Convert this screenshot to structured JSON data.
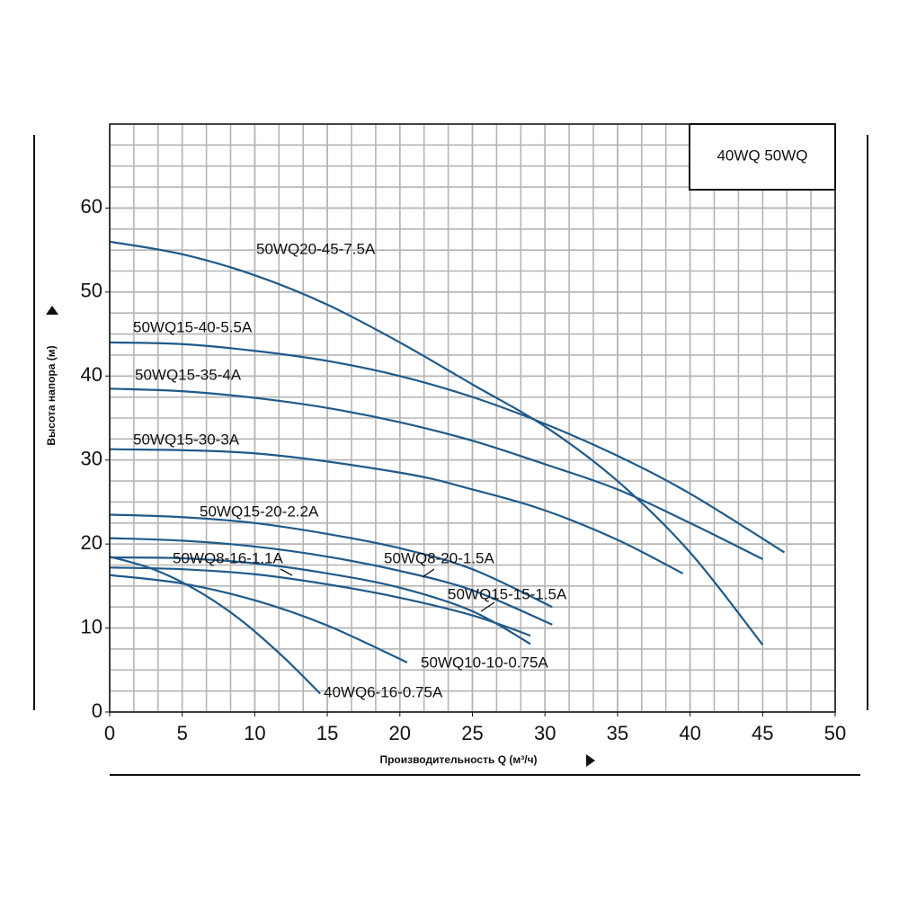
{
  "chart_data": {
    "type": "line",
    "box_label": "40WQ 50WQ",
    "xlabel": "Производительность Q (м³/ч)",
    "ylabel": "Высота напора (м)",
    "xlim": [
      0,
      50
    ],
    "ylim": [
      0,
      70
    ],
    "xticks": [
      0,
      5,
      10,
      15,
      20,
      25,
      30,
      35,
      40,
      45,
      50
    ],
    "yticks": [
      0,
      10,
      20,
      30,
      40,
      50,
      60
    ],
    "grid": true,
    "x_grid_divisions": 3,
    "y_grid_divisions": 4,
    "series": [
      {
        "name": "50WQ20-45-7.5A",
        "color": "#1f5a8a",
        "x": [
          0,
          5,
          10,
          15,
          20,
          25,
          30,
          35,
          40,
          45
        ],
        "values": [
          56,
          54.5,
          52,
          48.5,
          44,
          39,
          34,
          27.5,
          19,
          8
        ]
      },
      {
        "name": "50WQ15-40-5.5A",
        "color": "#1f5a8a",
        "x": [
          0,
          5,
          10,
          15,
          20,
          25,
          30,
          35,
          40,
          46.5
        ],
        "values": [
          44,
          43.8,
          43,
          41.8,
          40,
          37.5,
          34.3,
          30.5,
          26,
          19
        ]
      },
      {
        "name": "50WQ15-35-4A",
        "color": "#1f5a8a",
        "x": [
          0,
          5,
          10,
          15,
          20,
          25,
          30,
          35,
          40,
          45
        ],
        "values": [
          38.5,
          38.2,
          37.4,
          36.2,
          34.5,
          32.3,
          29.5,
          26.5,
          22.5,
          18.2
        ]
      },
      {
        "name": "50WQ15-30-3A",
        "color": "#1f5a8a",
        "x": [
          0,
          10,
          20,
          25,
          30,
          35,
          39.5
        ],
        "values": [
          31.3,
          30.8,
          28.5,
          26.5,
          24,
          20.5,
          16.5
        ]
      },
      {
        "name": "50WQ15-20-2.2A",
        "color": "#1f5a8a",
        "x": [
          0,
          5,
          10,
          15,
          20,
          25,
          30.5
        ],
        "values": [
          23.5,
          23.2,
          22.5,
          21.2,
          19.5,
          17,
          12.5
        ]
      },
      {
        "name": "50WQ8-20-1.5A",
        "color": "#1f5a8a",
        "x": [
          0,
          5,
          10,
          15,
          20,
          25,
          30.5
        ],
        "values": [
          20.7,
          20.4,
          19.7,
          18.5,
          16.8,
          14.5,
          10.4
        ]
      },
      {
        "name": "50WQ15-15-1.5A",
        "color": "#1f5a8a",
        "x": [
          0,
          5,
          10,
          15,
          20,
          25,
          29
        ],
        "values": [
          17.2,
          17,
          16.4,
          15.2,
          13.6,
          11.5,
          9.1
        ]
      },
      {
        "name": "50WQ8-16-1.1A",
        "color": "#1f5a8a",
        "x": [
          0,
          5,
          10,
          15,
          20,
          25,
          29
        ],
        "values": [
          18.4,
          18.3,
          17.7,
          16.5,
          14.8,
          12,
          8.1
        ]
      },
      {
        "name": "50WQ10-10-0.75A",
        "color": "#1f5a8a",
        "x": [
          0,
          5,
          10,
          15,
          20.5
        ],
        "values": [
          16.3,
          15.3,
          13.3,
          10.3,
          5.9
        ]
      },
      {
        "name": "40WQ6-16-0.75A",
        "color": "#1f5a8a",
        "x": [
          0,
          3,
          6,
          9,
          12,
          14.5
        ],
        "values": [
          18.5,
          17,
          14.5,
          11,
          6.5,
          2.2
        ]
      }
    ]
  }
}
